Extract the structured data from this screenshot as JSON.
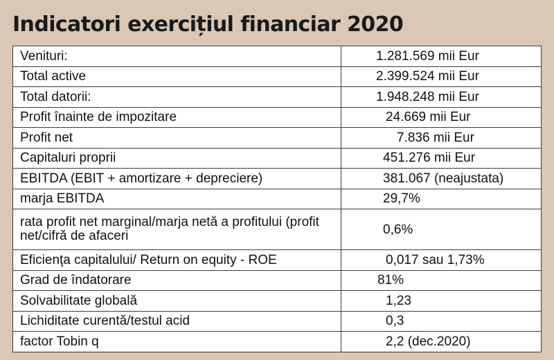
{
  "title": "Indicatori exercițiul financiar 2020",
  "rows": [
    {
      "label": "Venituri:",
      "value": "1.281.569 mii Eur"
    },
    {
      "label": "Total active",
      "value": "2.399.524 mii Eur"
    },
    {
      "label": "Total datorii:",
      "value": "1.948.248  mii Eur"
    },
    {
      "label": "Profit înainte de impozitare",
      "value": "24.669 mii Eur"
    },
    {
      "label": "Profit net",
      "value": "7.836  mii Eur"
    },
    {
      "label": "Capitaluri proprii",
      "value": "451.276  mii Eur"
    },
    {
      "label": "EBITDA (EBIT + amortizare + depreciere)",
      "value": "381.067  (neajustata)"
    },
    {
      "label": "marja EBITDA",
      "value": "29,7%"
    },
    {
      "label": "rata profit net marginal/marja netă a profitului (profit net/cifră de afaceri",
      "value": "0,6%"
    },
    {
      "label": "Eficienţa capitalului/ Return on equity - ROE",
      "value": "0,017 sau  1,73%"
    },
    {
      "label": "Grad de îndatorare",
      "value": "81%"
    },
    {
      "label": "Solvabilitate globală",
      "value": "1,23"
    },
    {
      "label": "Lichiditate curentă/testul acid",
      "value": "0,3"
    },
    {
      "label": "factor Tobin q",
      "value": "2,2 (dec.2020)"
    }
  ]
}
